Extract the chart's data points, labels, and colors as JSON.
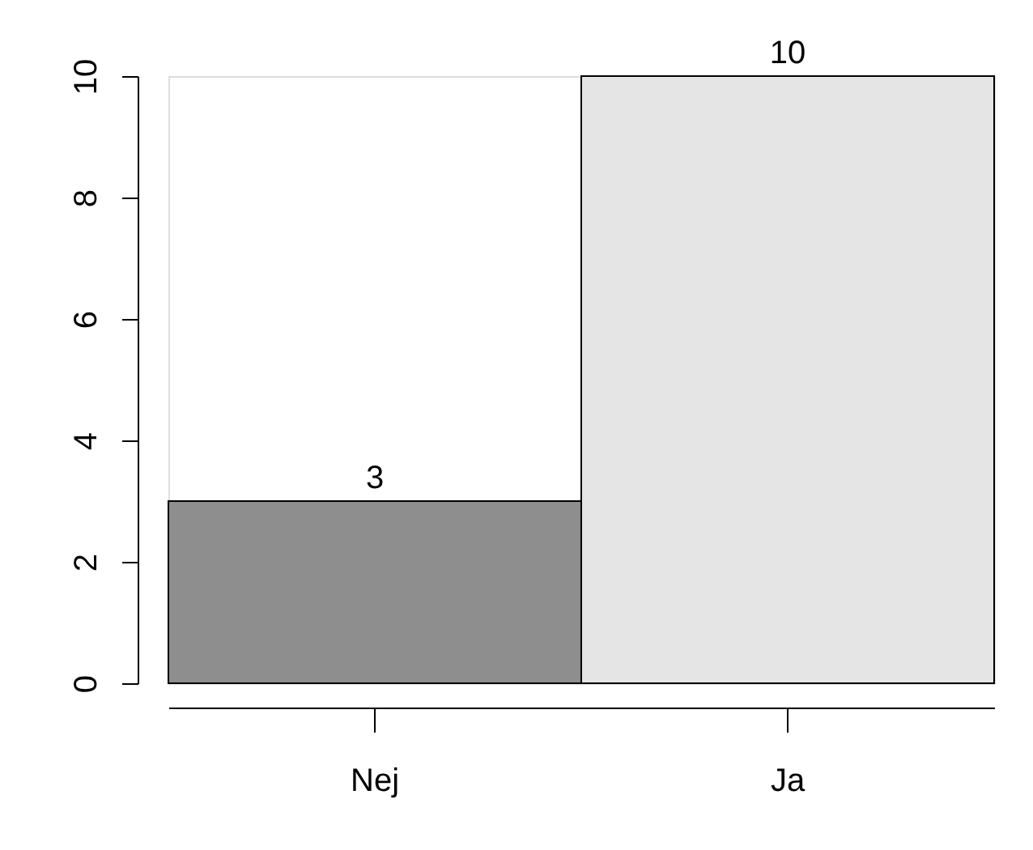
{
  "chart_data": {
    "type": "bar",
    "categories": [
      "Nej",
      "Ja"
    ],
    "values": [
      3,
      10
    ],
    "colors": [
      "#8e8e8e",
      "#e5e5e5"
    ],
    "ylim": [
      0,
      10
    ],
    "yticks": [
      0,
      2,
      4,
      6,
      8,
      10
    ],
    "data_labels": true,
    "grid": false
  }
}
